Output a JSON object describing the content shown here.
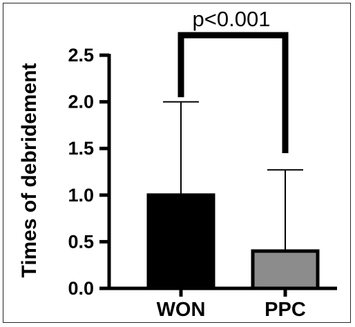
{
  "chart_data": {
    "type": "bar",
    "categories": [
      "WON",
      "PPC"
    ],
    "values": [
      1.0,
      0.4
    ],
    "error_upper": [
      2.0,
      1.27
    ],
    "ylabel": "Times of debridement",
    "ylim": [
      0,
      2.5
    ],
    "yticks": [
      "0.0",
      "0.5",
      "1.0",
      "1.5",
      "2.0",
      "2.5"
    ],
    "bar_colors": [
      "#000000",
      "#8c8c8c"
    ],
    "annotation": "p<0.001",
    "grid": false
  }
}
